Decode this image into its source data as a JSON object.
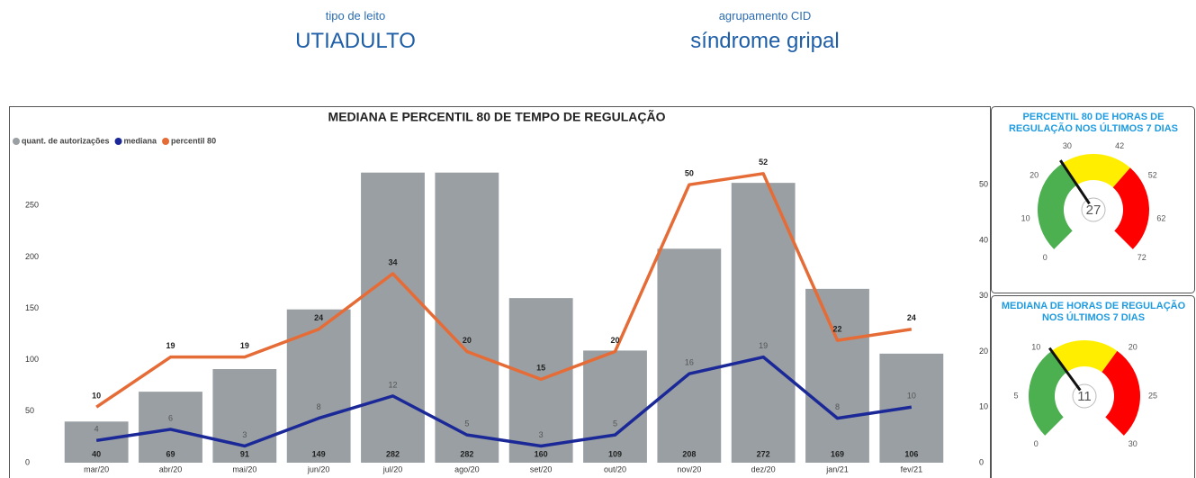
{
  "filters": [
    {
      "label": "tipo de leito",
      "value": "UTIADULTO"
    },
    {
      "label": "agrupamento CID",
      "value": "síndrome gripal"
    }
  ],
  "chart_data": [
    {
      "type": "combo",
      "title": "MEDIANA E PERCENTIL 80 DE TEMPO DE REGULAÇÃO",
      "categories": [
        "mar/20",
        "abr/20",
        "mai/20",
        "jun/20",
        "jul/20",
        "ago/20",
        "set/20",
        "out/20",
        "nov/20",
        "dez/20",
        "jan/21",
        "fev/21"
      ],
      "series": [
        {
          "name": "quant. de autorizações",
          "type": "bar",
          "color": "#999fa2",
          "values": [
            40,
            69,
            91,
            149,
            282,
            282,
            160,
            109,
            208,
            272,
            169,
            106
          ]
        },
        {
          "name": "mediana",
          "type": "line",
          "axis": "y2",
          "color": "#1b2897",
          "values": [
            4,
            6,
            3,
            8,
            12,
            5,
            3,
            5,
            16,
            19,
            8,
            10
          ]
        },
        {
          "name": "percentil 80",
          "type": "line",
          "axis": "y2",
          "color": "#e66c37",
          "values": [
            10,
            19,
            19,
            24,
            34,
            20,
            15,
            20,
            50,
            52,
            22,
            24
          ]
        }
      ],
      "ylim": [
        0,
        294
      ],
      "yticks": [
        0,
        50,
        100,
        150,
        200,
        250
      ],
      "y2lim": [
        0,
        54.4
      ],
      "y2ticks": [
        0,
        10,
        20,
        30,
        40,
        50
      ]
    },
    {
      "type": "gauge",
      "title": "PERCENTIL 80 DE HORAS DE REGULAÇÃO NOS ÚLTIMOS 7 DIAS",
      "value": 27,
      "range": [
        0,
        72
      ],
      "ticks": [
        0,
        10,
        20,
        30,
        42,
        52,
        62,
        72
      ],
      "bands": [
        {
          "from": 0,
          "to": 27,
          "color": "#4caf50"
        },
        {
          "from": 27,
          "to": 47,
          "color": "#ffee00"
        },
        {
          "from": 47,
          "to": 72,
          "color": "#ff0000"
        }
      ]
    },
    {
      "type": "gauge",
      "title": "MEDIANA DE HORAS DE REGULAÇÃO NOS ÚLTIMOS 7 DIAS",
      "value": 11,
      "range": [
        0,
        30
      ],
      "ticks": [
        0,
        5,
        10,
        20,
        25,
        30
      ],
      "bands": [
        {
          "from": 0,
          "to": 11,
          "color": "#4caf50"
        },
        {
          "from": 11,
          "to": 19,
          "color": "#ffee00"
        },
        {
          "from": 19,
          "to": 30,
          "color": "#ff0000"
        }
      ]
    }
  ]
}
